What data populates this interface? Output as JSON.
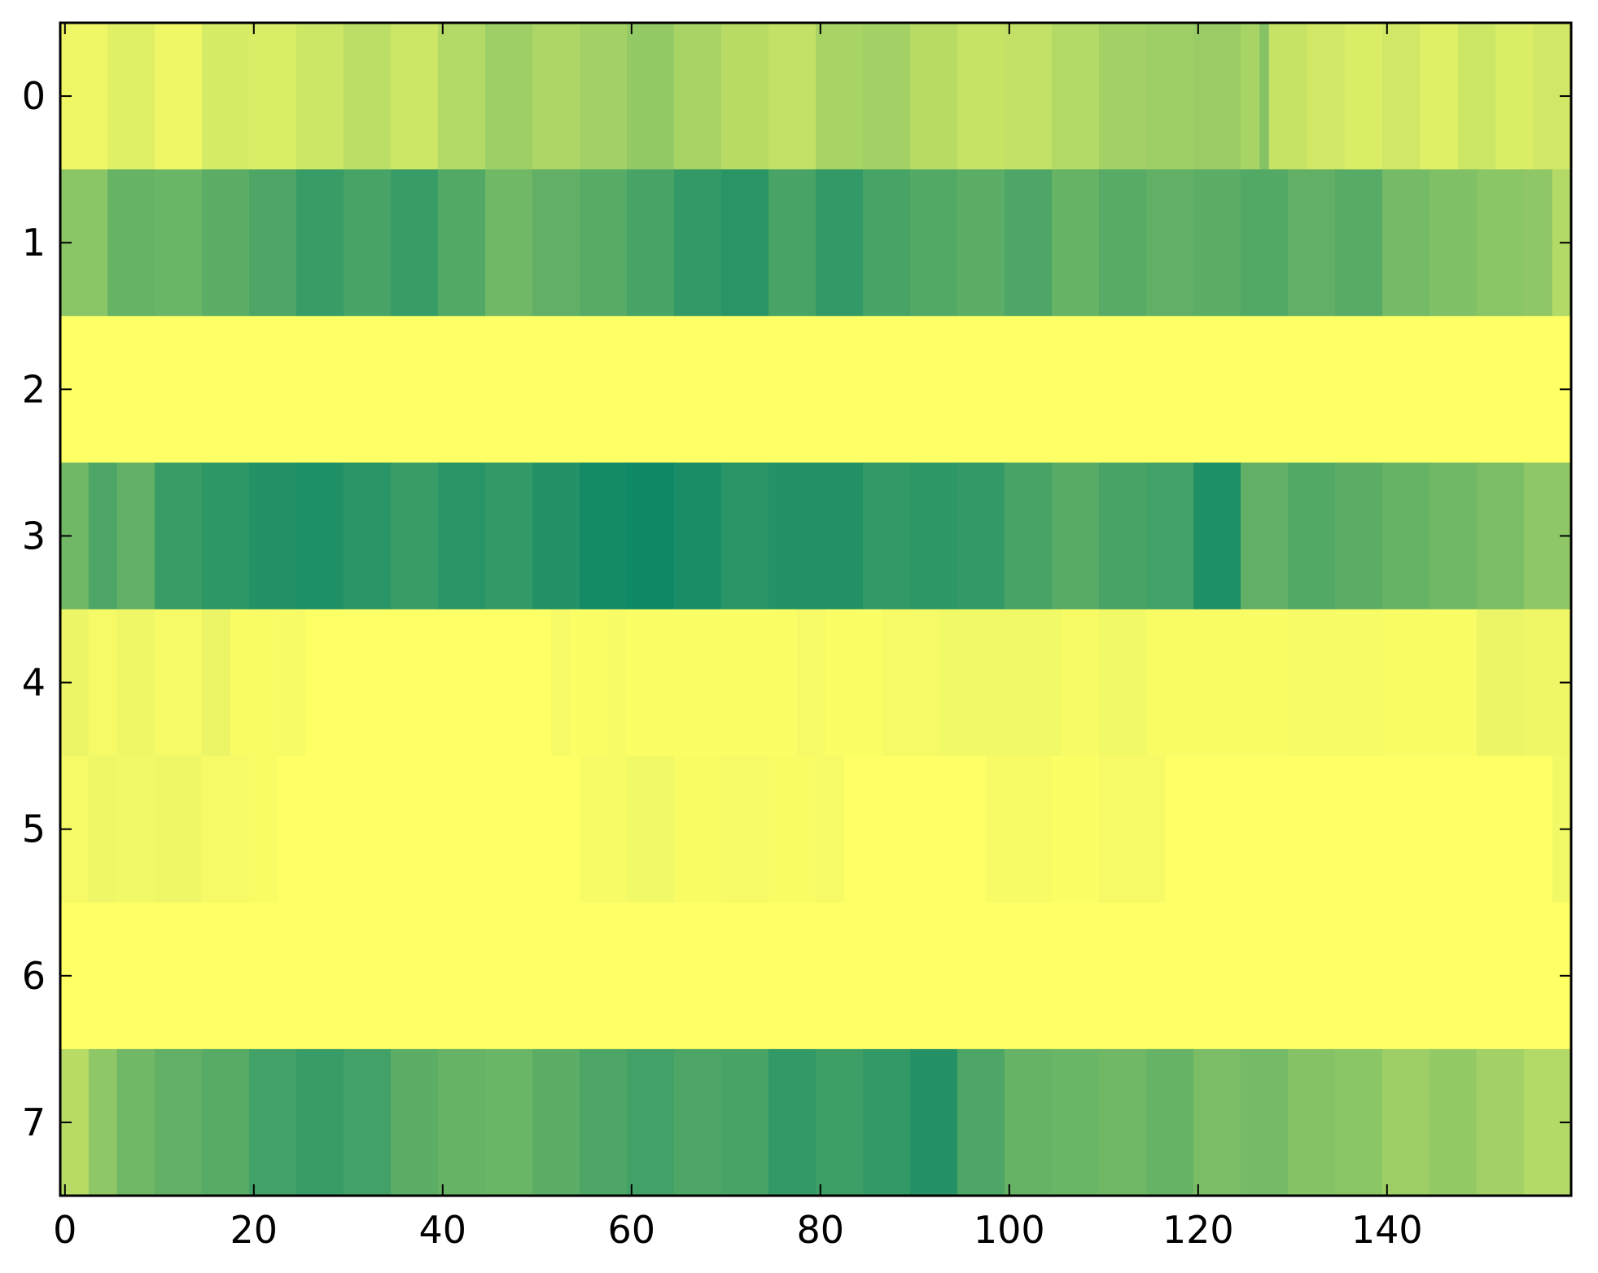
{
  "chart_data": {
    "type": "heatmap",
    "title": "",
    "xlabel": "",
    "ylabel": "",
    "colormap": "summer_r",
    "colormap_stops": [
      "#ffff66",
      "#008066"
    ],
    "value_range": [
      0,
      1
    ],
    "grid": false,
    "legend": "none",
    "xlim": [
      -0.5,
      159.5
    ],
    "ylim": [
      7.5,
      -0.5
    ],
    "x_ticks": [
      0,
      20,
      40,
      60,
      80,
      100,
      120,
      140
    ],
    "y_ticks": [
      0,
      1,
      2,
      3,
      4,
      5,
      6,
      7
    ],
    "n_rows": 8,
    "n_cols": 160,
    "rows": [
      {
        "row": 0,
        "segments": [
          [
            0,
            4,
            0.06
          ],
          [
            5,
            9,
            0.12
          ],
          [
            10,
            14,
            0.06
          ],
          [
            15,
            19,
            0.16
          ],
          [
            20,
            24,
            0.14
          ],
          [
            25,
            29,
            0.2
          ],
          [
            30,
            34,
            0.26
          ],
          [
            35,
            39,
            0.2
          ],
          [
            40,
            44,
            0.3
          ],
          [
            45,
            49,
            0.38
          ],
          [
            50,
            54,
            0.32
          ],
          [
            55,
            59,
            0.36
          ],
          [
            60,
            64,
            0.42
          ],
          [
            65,
            69,
            0.34
          ],
          [
            70,
            74,
            0.28
          ],
          [
            75,
            79,
            0.24
          ],
          [
            80,
            84,
            0.34
          ],
          [
            85,
            89,
            0.36
          ],
          [
            90,
            94,
            0.28
          ],
          [
            95,
            99,
            0.22
          ],
          [
            100,
            104,
            0.24
          ],
          [
            105,
            109,
            0.3
          ],
          [
            110,
            114,
            0.36
          ],
          [
            115,
            119,
            0.38
          ],
          [
            120,
            124,
            0.4
          ],
          [
            125,
            126,
            0.34
          ],
          [
            127,
            127,
            0.48
          ],
          [
            128,
            131,
            0.22
          ],
          [
            132,
            135,
            0.18
          ],
          [
            136,
            139,
            0.14
          ],
          [
            140,
            143,
            0.18
          ],
          [
            144,
            147,
            0.12
          ],
          [
            148,
            151,
            0.2
          ],
          [
            152,
            155,
            0.14
          ],
          [
            156,
            159,
            0.18
          ]
        ]
      },
      {
        "row": 1,
        "segments": [
          [
            0,
            4,
            0.46
          ],
          [
            5,
            9,
            0.6
          ],
          [
            10,
            14,
            0.58
          ],
          [
            15,
            19,
            0.64
          ],
          [
            20,
            24,
            0.7
          ],
          [
            25,
            29,
            0.78
          ],
          [
            30,
            34,
            0.72
          ],
          [
            35,
            39,
            0.78
          ],
          [
            40,
            44,
            0.68
          ],
          [
            45,
            49,
            0.56
          ],
          [
            50,
            54,
            0.62
          ],
          [
            55,
            59,
            0.66
          ],
          [
            60,
            64,
            0.72
          ],
          [
            65,
            69,
            0.8
          ],
          [
            70,
            74,
            0.84
          ],
          [
            75,
            79,
            0.72
          ],
          [
            80,
            84,
            0.8
          ],
          [
            85,
            89,
            0.72
          ],
          [
            90,
            94,
            0.68
          ],
          [
            95,
            99,
            0.64
          ],
          [
            100,
            104,
            0.7
          ],
          [
            105,
            109,
            0.6
          ],
          [
            110,
            114,
            0.66
          ],
          [
            115,
            119,
            0.62
          ],
          [
            120,
            124,
            0.64
          ],
          [
            125,
            129,
            0.68
          ],
          [
            130,
            134,
            0.62
          ],
          [
            135,
            139,
            0.66
          ],
          [
            140,
            144,
            0.54
          ],
          [
            145,
            149,
            0.5
          ],
          [
            150,
            154,
            0.46
          ],
          [
            155,
            157,
            0.44
          ],
          [
            158,
            159,
            0.3
          ]
        ]
      },
      {
        "row": 2,
        "segments": [
          [
            0,
            159,
            0.0
          ]
        ]
      },
      {
        "row": 3,
        "segments": [
          [
            0,
            2,
            0.56
          ],
          [
            3,
            5,
            0.7
          ],
          [
            6,
            9,
            0.62
          ],
          [
            10,
            14,
            0.78
          ],
          [
            15,
            19,
            0.82
          ],
          [
            20,
            24,
            0.86
          ],
          [
            25,
            29,
            0.88
          ],
          [
            30,
            34,
            0.84
          ],
          [
            35,
            39,
            0.78
          ],
          [
            40,
            44,
            0.84
          ],
          [
            45,
            49,
            0.8
          ],
          [
            50,
            54,
            0.86
          ],
          [
            55,
            59,
            0.92
          ],
          [
            60,
            64,
            0.94
          ],
          [
            65,
            69,
            0.9
          ],
          [
            70,
            74,
            0.84
          ],
          [
            75,
            79,
            0.86
          ],
          [
            80,
            84,
            0.86
          ],
          [
            85,
            89,
            0.8
          ],
          [
            90,
            94,
            0.82
          ],
          [
            95,
            99,
            0.8
          ],
          [
            100,
            104,
            0.72
          ],
          [
            105,
            109,
            0.66
          ],
          [
            110,
            114,
            0.72
          ],
          [
            115,
            119,
            0.74
          ],
          [
            120,
            124,
            0.88
          ],
          [
            125,
            129,
            0.62
          ],
          [
            130,
            134,
            0.68
          ],
          [
            135,
            139,
            0.64
          ],
          [
            140,
            144,
            0.6
          ],
          [
            145,
            149,
            0.56
          ],
          [
            150,
            154,
            0.52
          ],
          [
            155,
            159,
            0.44
          ]
        ]
      },
      {
        "row": 4,
        "segments": [
          [
            0,
            2,
            0.08
          ],
          [
            3,
            5,
            0.04
          ],
          [
            6,
            9,
            0.06
          ],
          [
            10,
            14,
            0.04
          ],
          [
            15,
            17,
            0.08
          ],
          [
            18,
            22,
            0.02
          ],
          [
            23,
            25,
            0.03
          ],
          [
            26,
            51,
            0.0
          ],
          [
            52,
            53,
            0.04
          ],
          [
            54,
            57,
            0.01
          ],
          [
            58,
            59,
            0.03
          ],
          [
            60,
            77,
            0.01
          ],
          [
            78,
            80,
            0.04
          ],
          [
            81,
            86,
            0.01
          ],
          [
            87,
            92,
            0.04
          ],
          [
            93,
            105,
            0.05
          ],
          [
            106,
            109,
            0.03
          ],
          [
            110,
            114,
            0.05
          ],
          [
            115,
            129,
            0.02
          ],
          [
            130,
            139,
            0.03
          ],
          [
            140,
            149,
            0.02
          ],
          [
            150,
            154,
            0.08
          ],
          [
            155,
            159,
            0.06
          ]
        ]
      },
      {
        "row": 5,
        "segments": [
          [
            0,
            2,
            0.04
          ],
          [
            3,
            5,
            0.06
          ],
          [
            6,
            9,
            0.05
          ],
          [
            10,
            14,
            0.06
          ],
          [
            15,
            19,
            0.04
          ],
          [
            20,
            22,
            0.02
          ],
          [
            23,
            54,
            0.0
          ],
          [
            55,
            59,
            0.03
          ],
          [
            60,
            64,
            0.05
          ],
          [
            65,
            69,
            0.02
          ],
          [
            70,
            74,
            0.04
          ],
          [
            75,
            79,
            0.02
          ],
          [
            80,
            82,
            0.04
          ],
          [
            83,
            97,
            0.0
          ],
          [
            98,
            104,
            0.03
          ],
          [
            105,
            109,
            0.01
          ],
          [
            110,
            116,
            0.04
          ],
          [
            117,
            157,
            0.0
          ],
          [
            158,
            159,
            0.05
          ]
        ]
      },
      {
        "row": 6,
        "segments": [
          [
            0,
            159,
            0.0
          ]
        ]
      },
      {
        "row": 7,
        "segments": [
          [
            0,
            2,
            0.28
          ],
          [
            3,
            5,
            0.44
          ],
          [
            6,
            9,
            0.56
          ],
          [
            10,
            14,
            0.62
          ],
          [
            15,
            19,
            0.66
          ],
          [
            20,
            24,
            0.74
          ],
          [
            25,
            29,
            0.78
          ],
          [
            30,
            34,
            0.74
          ],
          [
            35,
            39,
            0.64
          ],
          [
            40,
            44,
            0.6
          ],
          [
            45,
            49,
            0.58
          ],
          [
            50,
            54,
            0.64
          ],
          [
            55,
            59,
            0.7
          ],
          [
            60,
            64,
            0.74
          ],
          [
            65,
            69,
            0.7
          ],
          [
            70,
            74,
            0.72
          ],
          [
            75,
            79,
            0.8
          ],
          [
            80,
            84,
            0.76
          ],
          [
            85,
            89,
            0.8
          ],
          [
            90,
            94,
            0.86
          ],
          [
            95,
            99,
            0.7
          ],
          [
            100,
            104,
            0.6
          ],
          [
            105,
            109,
            0.58
          ],
          [
            110,
            114,
            0.56
          ],
          [
            115,
            119,
            0.6
          ],
          [
            120,
            124,
            0.52
          ],
          [
            125,
            129,
            0.54
          ],
          [
            130,
            134,
            0.48
          ],
          [
            135,
            139,
            0.46
          ],
          [
            140,
            144,
            0.38
          ],
          [
            145,
            149,
            0.42
          ],
          [
            150,
            154,
            0.36
          ],
          [
            155,
            159,
            0.3
          ]
        ]
      }
    ]
  }
}
